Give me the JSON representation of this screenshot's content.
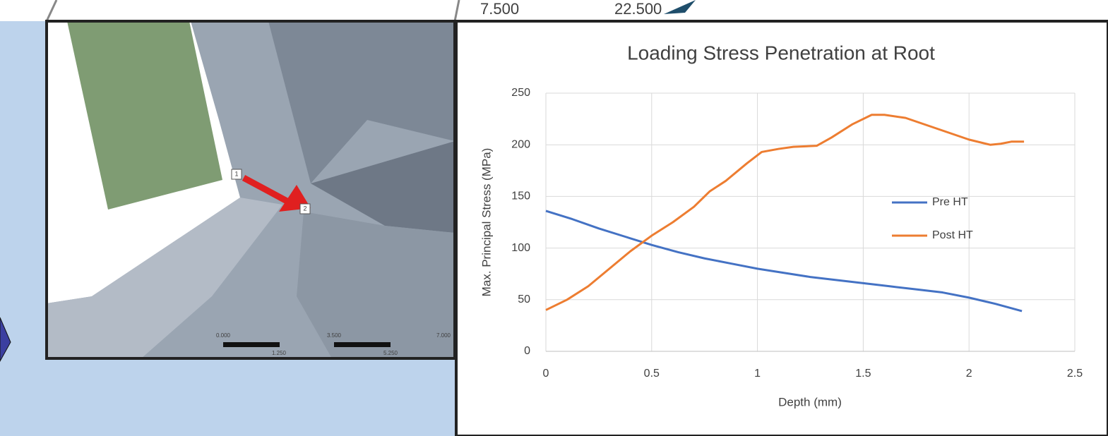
{
  "top_labels": [
    "7.500",
    "22.500"
  ],
  "mesh_view": {
    "node_labels": [
      "1",
      "2"
    ],
    "scale_labels": [
      "0.000",
      "3.500",
      "7.000",
      "1.250",
      "5.250"
    ]
  },
  "chart_data": {
    "type": "line",
    "title": "Loading Stress Penetration at Root",
    "xlabel": "Depth (mm)",
    "ylabel": "Max. Principal Stress (MPa)",
    "xlim": [
      0,
      2.5
    ],
    "xticks": [
      0,
      0.5,
      1,
      1.5,
      2,
      2.5
    ],
    "ylim": [
      0,
      250
    ],
    "yticks": [
      0,
      50,
      100,
      150,
      200,
      250
    ],
    "grid": true,
    "legend_position": "right",
    "series": [
      {
        "name": "Pre HT",
        "color": "#4472c4",
        "x": [
          0,
          0.125,
          0.25,
          0.375,
          0.5,
          0.625,
          0.75,
          0.875,
          1.0,
          1.125,
          1.25,
          1.375,
          1.5,
          1.625,
          1.75,
          1.875,
          2.0,
          2.125,
          2.25
        ],
        "values": [
          136,
          128,
          119,
          111,
          103,
          96,
          90,
          85,
          80,
          76,
          72,
          69,
          66,
          63,
          60,
          57,
          52,
          46,
          39
        ]
      },
      {
        "name": "Post HT",
        "color": "#ed7d31",
        "x": [
          0,
          0.1,
          0.2,
          0.3,
          0.4,
          0.5,
          0.6,
          0.7,
          0.775,
          0.85,
          0.95,
          1.02,
          1.1,
          1.17,
          1.28,
          1.35,
          1.45,
          1.54,
          1.6,
          1.7,
          1.8,
          1.9,
          2.0,
          2.1,
          2.15,
          2.2,
          2.26
        ],
        "values": [
          40,
          50,
          63,
          80,
          97,
          112,
          125,
          140,
          155,
          165,
          182,
          193,
          196,
          198,
          199,
          207,
          220,
          229,
          229,
          226,
          219,
          212,
          205,
          200,
          201,
          203,
          203
        ]
      }
    ]
  }
}
